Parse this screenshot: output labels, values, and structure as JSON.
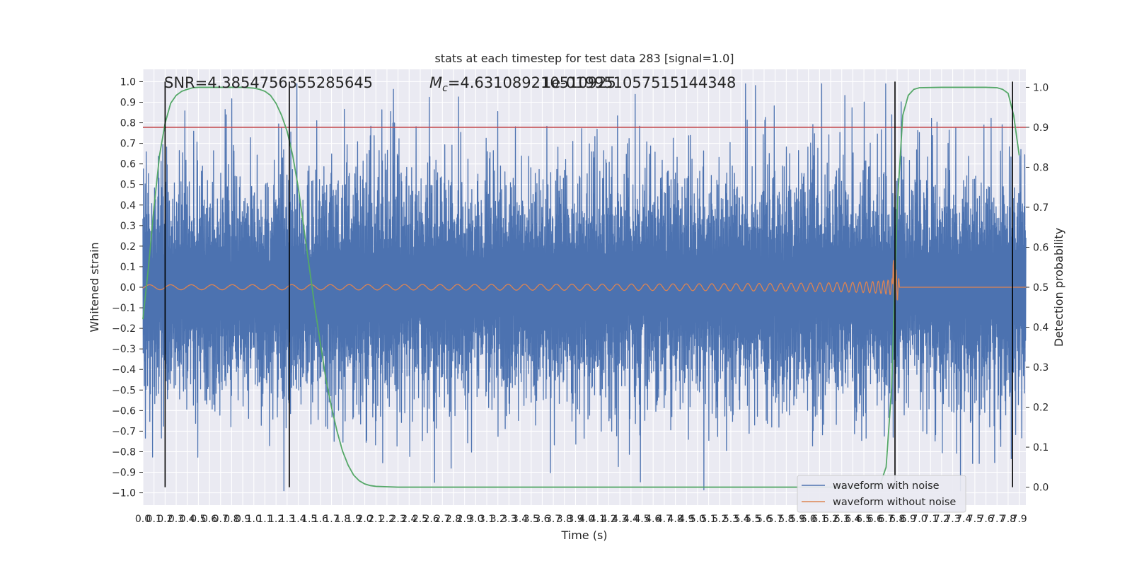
{
  "chart_data": {
    "type": "line",
    "title": "stats at each timestep for test data 283 [signal=1.0]",
    "xlabel": "Time (s)",
    "ylabel": "Whitened strain",
    "y2label": "Detection probability",
    "xlim": [
      0.0,
      7.96
    ],
    "ylim": [
      -1.06,
      1.06
    ],
    "y2lim": [
      -0.045,
      1.045
    ],
    "x_tick_labels": [
      "0.0",
      "0.1",
      "0.2",
      "0.3",
      "0.4",
      "0.5",
      "0.6",
      "0.7",
      "0.8",
      "0.9",
      "1.0",
      "1.1",
      "1.2",
      "1.3",
      "1.4",
      "1.5",
      "1.6",
      "1.7",
      "1.8",
      "1.9",
      "2.0",
      "2.1",
      "2.2",
      "2.3",
      "2.4",
      "2.5",
      "2.6",
      "2.7",
      "2.8",
      "2.9",
      "3.0",
      "3.1",
      "3.2",
      "3.3",
      "3.4",
      "3.5",
      "3.6",
      "3.7",
      "3.8",
      "3.9",
      "4.0",
      "4.1",
      "4.2",
      "4.3",
      "4.4",
      "4.5",
      "4.6",
      "4.7",
      "4.8",
      "4.9",
      "5.0",
      "5.1",
      "5.2",
      "5.3",
      "5.4",
      "5.5",
      "5.6",
      "5.7",
      "5.8",
      "5.9",
      "6.0",
      "6.1",
      "6.2",
      "6.3",
      "6.4",
      "6.5",
      "6.6",
      "6.7",
      "6.8",
      "6.9",
      "7.0",
      "7.1",
      "7.2",
      "7.3",
      "7.4",
      "7.5",
      "7.6",
      "7.7",
      "7.8",
      "7.9"
    ],
    "y_tick_labels": [
      "1.0",
      "0.9",
      "0.8",
      "0.7",
      "0.6",
      "0.5",
      "0.4",
      "0.3",
      "0.2",
      "0.1",
      "0.0",
      "−0.1",
      "−0.2",
      "−0.3",
      "−0.4",
      "−0.5",
      "−0.6",
      "−0.7",
      "−0.8",
      "−0.9",
      "−1.0"
    ],
    "y2_tick_labels": [
      "1.0",
      "0.9",
      "0.8",
      "0.7",
      "0.6",
      "0.5",
      "0.4",
      "0.3",
      "0.2",
      "0.1",
      "0.0"
    ],
    "annotations": {
      "snr": "SNR=4.385475635528564‌5",
      "mc_symbol": "M",
      "mc_sub": "c",
      "mc_value": "=4.631089210510925",
      "mc_overlap": "1e-019951057515144348"
    },
    "threshold_y2": 0.9,
    "threshold_color": "#c44e52",
    "event_lines_x": [
      0.2,
      1.32,
      6.78,
      7.84
    ],
    "detection_probability": {
      "x": [
        0.0,
        0.05,
        0.1,
        0.15,
        0.2,
        0.25,
        0.3,
        0.35,
        0.4,
        0.45,
        0.5,
        0.6,
        0.7,
        0.8,
        0.9,
        1.0,
        1.05,
        1.1,
        1.15,
        1.2,
        1.25,
        1.3,
        1.35,
        1.4,
        1.45,
        1.5,
        1.55,
        1.6,
        1.65,
        1.7,
        1.75,
        1.8,
        1.85,
        1.9,
        1.95,
        2.0,
        2.05,
        2.1,
        2.2,
        2.3,
        2.5,
        3.0,
        4.0,
        5.0,
        6.0,
        6.5,
        6.6,
        6.65,
        6.7,
        6.75,
        6.8,
        6.85,
        6.9,
        6.95,
        7.0,
        7.2,
        7.4,
        7.6,
        7.7,
        7.75,
        7.8,
        7.85,
        7.9
      ],
      "y": [
        0.42,
        0.55,
        0.7,
        0.83,
        0.91,
        0.96,
        0.98,
        0.99,
        0.995,
        0.999,
        1.0,
        1.0,
        1.0,
        1.0,
        1.0,
        0.998,
        0.995,
        0.99,
        0.98,
        0.96,
        0.93,
        0.89,
        0.83,
        0.75,
        0.65,
        0.55,
        0.45,
        0.36,
        0.27,
        0.2,
        0.14,
        0.09,
        0.055,
        0.03,
        0.016,
        0.008,
        0.004,
        0.002,
        0.001,
        0.0,
        0.0,
        0.0,
        0.0,
        0.0,
        0.0,
        0.0,
        0.002,
        0.01,
        0.05,
        0.25,
        0.7,
        0.93,
        0.98,
        0.995,
        0.999,
        1.0,
        1.0,
        1.0,
        0.999,
        0.995,
        0.985,
        0.93,
        0.83
      ]
    },
    "series": [
      {
        "name": "waveform with noise",
        "color": "#4c72b0"
      },
      {
        "name": "waveform without noise",
        "color": "#dd8452"
      }
    ],
    "prob_color": "#55a868",
    "grid": true,
    "legend_placement": "lower-right"
  }
}
